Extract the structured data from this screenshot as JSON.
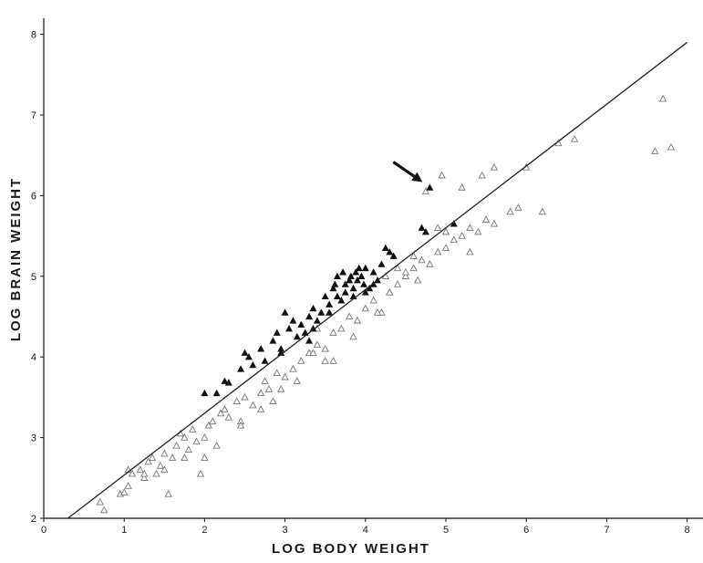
{
  "chart_data": {
    "type": "scatter",
    "title": "",
    "xlabel": "LOG BODY WEIGHT",
    "ylabel": "LOG BRAIN WEIGHT",
    "xlim": [
      0,
      8.2
    ],
    "ylim": [
      2,
      8.2
    ],
    "x_ticks": [
      "0",
      "1",
      "2",
      "3",
      "4",
      "5",
      "6",
      "7",
      "8"
    ],
    "y_ticks": [
      "2",
      "3",
      "4",
      "5",
      "6",
      "7",
      "8"
    ],
    "grid": false,
    "legend": "none",
    "colors": {
      "filled": "#111111",
      "open": "#777777",
      "line": "#222222",
      "axis": "#111111"
    },
    "regression_line": {
      "x": [
        0.3,
        8.0
      ],
      "y": [
        2.0,
        7.9
      ]
    },
    "annotation": {
      "type": "arrow",
      "target": [
        4.8,
        6.1
      ]
    },
    "series": [
      {
        "marker": "filled-triangle",
        "points": [
          [
            2.0,
            3.55
          ],
          [
            2.25,
            3.7
          ],
          [
            2.3,
            3.68
          ],
          [
            2.45,
            3.85
          ],
          [
            2.5,
            4.05
          ],
          [
            2.55,
            4.0
          ],
          [
            2.6,
            3.9
          ],
          [
            2.7,
            4.1
          ],
          [
            2.75,
            3.95
          ],
          [
            2.85,
            4.2
          ],
          [
            2.9,
            4.3
          ],
          [
            2.95,
            4.05
          ],
          [
            3.0,
            4.55
          ],
          [
            3.05,
            4.35
          ],
          [
            3.1,
            4.45
          ],
          [
            3.15,
            4.25
          ],
          [
            3.2,
            4.4
          ],
          [
            3.25,
            4.3
          ],
          [
            3.3,
            4.5
          ],
          [
            3.35,
            4.6
          ],
          [
            3.4,
            4.45
          ],
          [
            3.45,
            4.55
          ],
          [
            3.5,
            4.75
          ],
          [
            3.55,
            4.65
          ],
          [
            3.6,
            4.85
          ],
          [
            3.62,
            4.9
          ],
          [
            3.65,
            5.0
          ],
          [
            3.7,
            4.7
          ],
          [
            3.72,
            5.05
          ],
          [
            3.75,
            4.9
          ],
          [
            3.8,
            4.95
          ],
          [
            3.82,
            5.0
          ],
          [
            3.85,
            4.85
          ],
          [
            3.88,
            5.05
          ],
          [
            3.9,
            4.95
          ],
          [
            3.92,
            5.1
          ],
          [
            3.95,
            5.0
          ],
          [
            3.98,
            4.9
          ],
          [
            4.0,
            5.1
          ],
          [
            4.05,
            4.85
          ],
          [
            4.1,
            5.05
          ],
          [
            4.15,
            4.95
          ],
          [
            4.2,
            5.15
          ],
          [
            4.25,
            5.35
          ],
          [
            4.3,
            5.3
          ],
          [
            4.35,
            5.25
          ],
          [
            4.0,
            4.8
          ],
          [
            4.7,
            5.6
          ],
          [
            4.75,
            5.55
          ],
          [
            5.1,
            5.65
          ],
          [
            4.8,
            6.1
          ],
          [
            3.35,
            4.35
          ],
          [
            2.95,
            4.1
          ],
          [
            3.65,
            4.75
          ],
          [
            3.75,
            4.8
          ],
          [
            4.1,
            4.9
          ],
          [
            2.15,
            3.55
          ],
          [
            3.55,
            4.55
          ],
          [
            3.85,
            4.75
          ],
          [
            3.3,
            4.2
          ]
        ]
      },
      {
        "marker": "open-triangle",
        "points": [
          [
            0.95,
            2.3
          ],
          [
            1.0,
            2.32
          ],
          [
            1.05,
            2.4
          ],
          [
            1.1,
            2.55
          ],
          [
            1.2,
            2.6
          ],
          [
            1.25,
            2.5
          ],
          [
            1.3,
            2.7
          ],
          [
            1.35,
            2.75
          ],
          [
            1.4,
            2.55
          ],
          [
            1.45,
            2.65
          ],
          [
            1.5,
            2.8
          ],
          [
            1.55,
            2.3
          ],
          [
            1.6,
            2.75
          ],
          [
            1.65,
            2.9
          ],
          [
            1.7,
            3.05
          ],
          [
            1.75,
            3.0
          ],
          [
            1.8,
            2.85
          ],
          [
            1.85,
            3.1
          ],
          [
            1.9,
            2.95
          ],
          [
            1.95,
            2.55
          ],
          [
            2.0,
            2.75
          ],
          [
            2.05,
            3.15
          ],
          [
            2.1,
            3.2
          ],
          [
            2.15,
            2.9
          ],
          [
            2.2,
            3.3
          ],
          [
            2.25,
            3.35
          ],
          [
            2.3,
            3.25
          ],
          [
            2.4,
            3.45
          ],
          [
            2.45,
            3.2
          ],
          [
            2.5,
            3.5
          ],
          [
            2.6,
            3.4
          ],
          [
            2.7,
            3.55
          ],
          [
            2.75,
            3.7
          ],
          [
            2.8,
            3.6
          ],
          [
            2.9,
            3.8
          ],
          [
            3.0,
            3.75
          ],
          [
            3.1,
            3.85
          ],
          [
            3.2,
            3.95
          ],
          [
            3.3,
            4.05
          ],
          [
            3.4,
            4.15
          ],
          [
            3.5,
            4.1
          ],
          [
            3.6,
            4.3
          ],
          [
            3.7,
            4.35
          ],
          [
            3.8,
            4.5
          ],
          [
            3.9,
            4.45
          ],
          [
            4.0,
            4.6
          ],
          [
            4.1,
            4.7
          ],
          [
            4.2,
            4.55
          ],
          [
            4.3,
            4.8
          ],
          [
            4.4,
            4.9
          ],
          [
            4.5,
            5.0
          ],
          [
            4.6,
            5.1
          ],
          [
            4.7,
            5.2
          ],
          [
            4.8,
            5.15
          ],
          [
            4.9,
            5.3
          ],
          [
            5.0,
            5.35
          ],
          [
            5.1,
            5.45
          ],
          [
            5.2,
            5.5
          ],
          [
            5.3,
            5.6
          ],
          [
            5.4,
            5.55
          ],
          [
            5.5,
            5.7
          ],
          [
            5.6,
            5.65
          ],
          [
            5.8,
            5.8
          ],
          [
            5.9,
            5.85
          ],
          [
            6.2,
            5.8
          ],
          [
            4.9,
            5.6
          ],
          [
            5.2,
            6.1
          ],
          [
            5.6,
            6.35
          ],
          [
            6.0,
            6.35
          ],
          [
            4.75,
            6.05
          ],
          [
            4.95,
            6.25
          ],
          [
            5.45,
            6.25
          ],
          [
            6.4,
            6.65
          ],
          [
            6.6,
            6.7
          ],
          [
            7.6,
            6.55
          ],
          [
            7.8,
            6.6
          ],
          [
            7.7,
            7.2
          ],
          [
            4.4,
            5.1
          ],
          [
            4.5,
            5.05
          ],
          [
            4.6,
            5.25
          ],
          [
            4.15,
            4.55
          ],
          [
            3.85,
            4.25
          ],
          [
            3.5,
            3.95
          ],
          [
            3.35,
            4.05
          ],
          [
            3.15,
            3.7
          ],
          [
            2.95,
            3.6
          ],
          [
            2.7,
            3.35
          ],
          [
            2.45,
            3.15
          ],
          [
            2.0,
            3.0
          ],
          [
            1.75,
            2.75
          ],
          [
            1.5,
            2.6
          ],
          [
            1.25,
            2.55
          ],
          [
            0.7,
            2.2
          ],
          [
            0.75,
            2.1
          ],
          [
            1.05,
            2.6
          ],
          [
            3.4,
            4.35
          ],
          [
            4.25,
            5.0
          ],
          [
            5.0,
            5.55
          ],
          [
            5.3,
            5.3
          ],
          [
            4.65,
            4.95
          ],
          [
            3.6,
            3.95
          ],
          [
            2.85,
            3.45
          ]
        ]
      }
    ]
  }
}
